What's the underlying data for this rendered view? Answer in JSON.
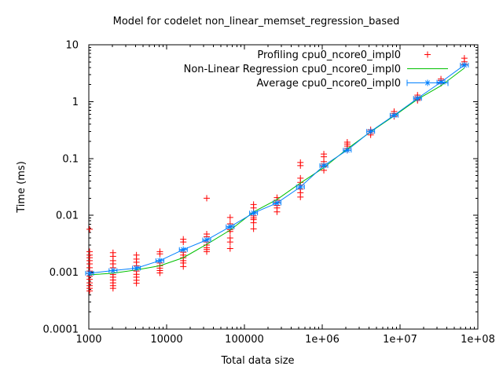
{
  "chart_data": {
    "type": "scatter",
    "title": "Model for codelet non_linear_memset_regression_based",
    "xlabel": "Total data size",
    "ylabel": "Time (ms)",
    "x_scale": "log",
    "y_scale": "log",
    "xlim": [
      1000,
      100000000
    ],
    "ylim": [
      0.0001,
      10
    ],
    "x_tick_labels": [
      "1000",
      "10000",
      "100000",
      "1e+06",
      "1e+07",
      "1e+08"
    ],
    "y_tick_labels": [
      "10",
      "1",
      "0.1",
      "0.01",
      "0.001",
      "0.0001"
    ],
    "grid": "off",
    "legend_position": "top-right-inside",
    "colors": {
      "profiling": "#ff0000",
      "regression": "#00c000",
      "average": "#0080ff",
      "axis": "#000000"
    },
    "series": {
      "profiling": {
        "label": "Profiling cpu0_ncore0_impl0",
        "color": "#ff0000",
        "marker": "plus",
        "clusters": [
          [
            1024,
            [
              0.0057,
              0.0023,
              0.002,
              0.0018,
              0.0016,
              0.0014,
              0.0012,
              0.00105,
              0.00095,
              0.00085,
              0.00075,
              0.00065,
              0.00058,
              0.00052,
              0.00047
            ]
          ],
          [
            2048,
            [
              0.0022,
              0.0019,
              0.0016,
              0.0014,
              0.0012,
              0.00091,
              0.00082,
              0.00073,
              0.00065,
              0.00058,
              0.00052
            ]
          ],
          [
            4096,
            [
              0.002,
              0.0017,
              0.0015,
              0.0013,
              0.00105,
              0.00092,
              0.00082,
              0.00072,
              0.00064
            ]
          ],
          [
            8192,
            [
              0.0023,
              0.0021,
              0.00145,
              0.0013,
              0.00118,
              0.00107,
              0.00097
            ]
          ],
          [
            16384,
            [
              0.0038,
              0.0034,
              0.00225,
              0.002,
              0.0018,
              0.0016,
              0.00145,
              0.00126
            ]
          ],
          [
            32768,
            [
              0.02,
              0.0047,
              0.0042,
              0.0034,
              0.003,
              0.0027,
              0.0025,
              0.0023
            ]
          ],
          [
            65536,
            [
              0.0092,
              0.0071,
              0.0063,
              0.0056,
              0.0052,
              0.004,
              0.0034,
              0.0026
            ]
          ],
          [
            131072,
            [
              0.0155,
              0.0135,
              0.011,
              0.0098,
              0.009,
              0.0084,
              0.0074,
              0.0058
            ]
          ],
          [
            262144,
            [
              0.0205,
              0.0185,
              0.0168,
              0.015,
              0.0135,
              0.0115
            ]
          ],
          [
            524288,
            [
              0.085,
              0.075,
              0.045,
              0.038,
              0.034,
              0.029,
              0.025,
              0.021
            ]
          ],
          [
            1048576,
            [
              0.12,
              0.107,
              0.088,
              0.08,
              0.072,
              0.062
            ]
          ],
          [
            2097152,
            [
              0.194,
              0.18,
              0.165,
              0.15,
              0.14
            ]
          ],
          [
            4194304,
            [
              0.32,
              0.3,
              0.28,
              0.26
            ]
          ],
          [
            8388608,
            [
              0.67,
              0.62,
              0.58,
              0.55
            ]
          ],
          [
            16777216,
            [
              1.3,
              1.2,
              1.1,
              1.05
            ]
          ],
          [
            33554432,
            [
              2.5,
              2.35,
              2.2,
              2.1
            ]
          ],
          [
            67108864,
            [
              5.8,
              5.0,
              4.5
            ]
          ]
        ]
      },
      "regression": {
        "label": "Non-Linear Regression cpu0_ncore0_impl0",
        "color": "#00c000",
        "style": "line",
        "points": [
          [
            1024,
            0.0009
          ],
          [
            2048,
            0.00096
          ],
          [
            4096,
            0.0011
          ],
          [
            8192,
            0.0013
          ],
          [
            16384,
            0.0018
          ],
          [
            32768,
            0.0031
          ],
          [
            65536,
            0.0055
          ],
          [
            131072,
            0.0115
          ],
          [
            262144,
            0.019
          ],
          [
            524288,
            0.037
          ],
          [
            1048576,
            0.069
          ],
          [
            2097152,
            0.148
          ],
          [
            4194304,
            0.295
          ],
          [
            8388608,
            0.56
          ],
          [
            16777216,
            1.1
          ],
          [
            33554432,
            1.9
          ],
          [
            67108864,
            3.9
          ]
        ]
      },
      "average": {
        "label": "Average cpu0_ncore0_impl0",
        "color": "#0080ff",
        "marker": "asterisk",
        "style": "line+xerrorbar",
        "points": [
          [
            1024,
            0.00096
          ],
          [
            2048,
            0.00107
          ],
          [
            4096,
            0.00118
          ],
          [
            8192,
            0.0016
          ],
          [
            16384,
            0.0025
          ],
          [
            32768,
            0.0037
          ],
          [
            65536,
            0.0063
          ],
          [
            131072,
            0.011
          ],
          [
            262144,
            0.0165
          ],
          [
            524288,
            0.0316
          ],
          [
            1048576,
            0.075
          ],
          [
            2097152,
            0.14
          ],
          [
            4194304,
            0.3
          ],
          [
            8388608,
            0.575
          ],
          [
            16777216,
            1.14
          ],
          [
            33554432,
            2.2
          ],
          [
            67108864,
            4.4
          ]
        ]
      }
    }
  }
}
